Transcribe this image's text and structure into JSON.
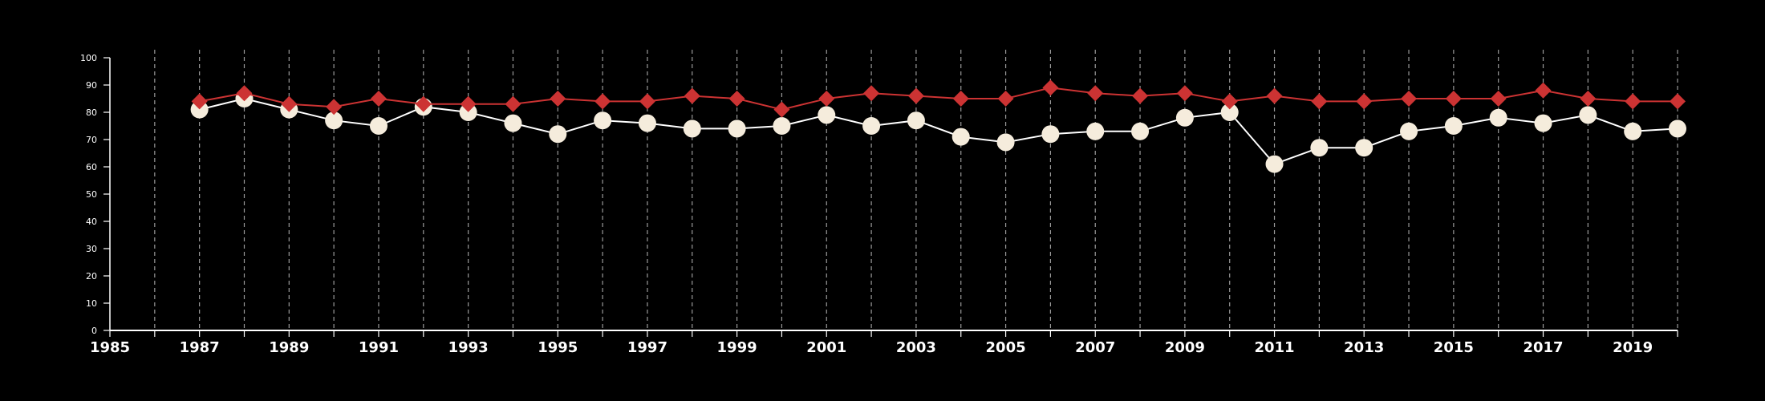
{
  "chart_data": {
    "type": "line",
    "title": "",
    "xlabel": "",
    "ylabel": "",
    "grid": "vertical dashed gridlines at every year",
    "xlim": [
      1985,
      2020
    ],
    "ylim": [
      0,
      100
    ],
    "x_tick_labels": [
      "1985",
      "1987",
      "1989",
      "1991",
      "1993",
      "1995",
      "1997",
      "1999",
      "2001",
      "2003",
      "2005",
      "2007",
      "2009",
      "2011",
      "2013",
      "2015",
      "2017",
      "2019"
    ],
    "y_tick_labels": [
      "0",
      "10",
      "20",
      "30",
      "40",
      "50",
      "60",
      "70",
      "80",
      "90",
      "100"
    ],
    "x": [
      1987,
      1988,
      1989,
      1990,
      1991,
      1992,
      1993,
      1994,
      1995,
      1996,
      1997,
      1998,
      1999,
      2000,
      2001,
      2002,
      2003,
      2004,
      2005,
      2006,
      2007,
      2008,
      2009,
      2010,
      2011,
      2012,
      2013,
      2014,
      2015,
      2016,
      2017,
      2018,
      2019,
      2020
    ],
    "series": [
      {
        "marker": "diamond",
        "color": "#cc3333",
        "values": [
          84,
          87,
          83,
          82,
          85,
          83,
          83,
          83,
          85,
          84,
          84,
          86,
          85,
          81,
          85,
          87,
          86,
          85,
          85,
          89,
          87,
          86,
          87,
          84,
          86,
          84,
          84,
          85,
          85,
          85,
          88,
          85,
          84,
          84
        ]
      },
      {
        "marker": "circle",
        "color": "#f5ecdc",
        "values": [
          81,
          85,
          81,
          77,
          75,
          82,
          80,
          76,
          72,
          77,
          76,
          74,
          74,
          75,
          79,
          75,
          77,
          71,
          69,
          72,
          73,
          73,
          78,
          80,
          61,
          67,
          67,
          73,
          75,
          78,
          76,
          79,
          73,
          74
        ]
      }
    ]
  }
}
